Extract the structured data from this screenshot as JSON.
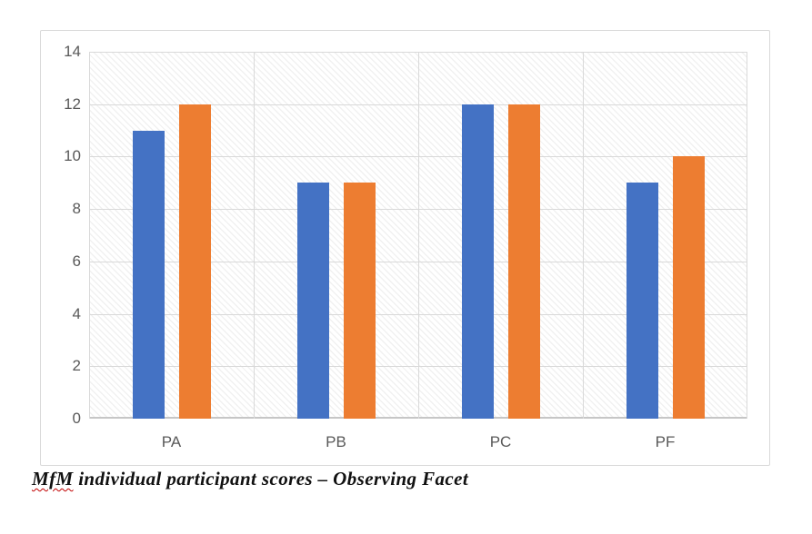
{
  "caption": {
    "misspelled_word": "MfM",
    "text_after": " individual participant scores – Observing Facet"
  },
  "chart_data": {
    "type": "bar",
    "title": "",
    "xlabel": "",
    "ylabel": "",
    "categories": [
      "PA",
      "PB",
      "PC",
      "PF"
    ],
    "series": [
      {
        "name": "blue-series",
        "color": "#4472C4",
        "values": [
          11,
          9,
          12,
          9
        ]
      },
      {
        "name": "orange-series",
        "color": "#ED7D31",
        "values": [
          12,
          9,
          12,
          10
        ]
      }
    ],
    "ylim": [
      0,
      14
    ],
    "yticks": [
      0,
      2,
      4,
      6,
      8,
      10,
      12,
      14
    ],
    "grid": true,
    "legend": "none",
    "plot_fill_pattern": "light-downward-diagonal-hatch"
  },
  "colors": {
    "gridline": "#D9D9D9",
    "axis_line": "#C6C6C6",
    "frame_border": "#D9D9D9",
    "tick_label": "#595959",
    "caption_text": "#111111",
    "squiggle": "#C00000",
    "background": "#FFFFFF"
  }
}
